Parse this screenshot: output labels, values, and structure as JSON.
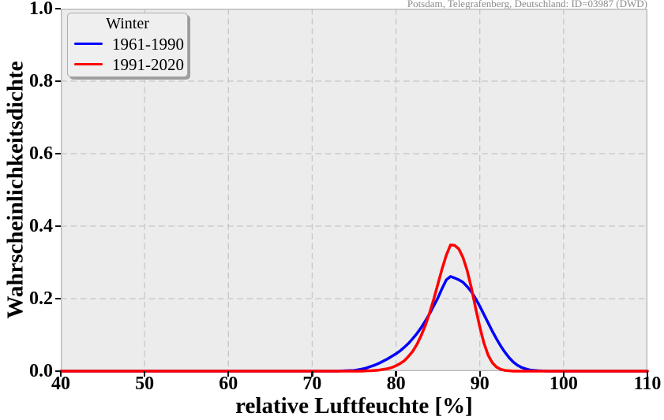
{
  "chart_data": {
    "type": "line",
    "annotation": "Potsdam, Telegrafenberg, Deutschland: ID=03987 (DWD)",
    "xlabel": "relative Luftfeuchte [%]",
    "ylabel": "Wahrscheinlichkeitsdichte",
    "xlim": [
      40,
      110
    ],
    "ylim": [
      0,
      1.0
    ],
    "xticks": {
      "values": [
        40,
        50,
        60,
        70,
        80,
        90,
        100,
        110
      ],
      "labels": [
        "40",
        "50",
        "60",
        "70",
        "80",
        "90",
        "100",
        "110"
      ]
    },
    "yticks": {
      "values": [
        0,
        0.2,
        0.4,
        0.6,
        0.8,
        1.0
      ],
      "labels": [
        "0.0",
        "0.2",
        "0.4",
        "0.6",
        "0.8",
        "1.0"
      ]
    },
    "grid": {
      "shown": true,
      "style": "dashed",
      "color": "#c6c6c6"
    },
    "plot_background": "#ececec",
    "legend": {
      "title": "Winter",
      "position": "upper left",
      "entries": [
        {
          "label": "1961-1990",
          "color": "#0000ff"
        },
        {
          "label": "1991-2020",
          "color": "#ff0000"
        }
      ]
    },
    "x": [
      40,
      50,
      60,
      70,
      73,
      74,
      75,
      75.5,
      76,
      76.5,
      77,
      77.5,
      78,
      78.5,
      79,
      79.5,
      80,
      80.5,
      81,
      81.5,
      82,
      82.5,
      83,
      83.5,
      84,
      84.5,
      85,
      85.5,
      86,
      86.5,
      87,
      87.5,
      88,
      88.5,
      89,
      89.5,
      90,
      90.5,
      91,
      91.5,
      92,
      92.5,
      93,
      93.5,
      94,
      94.5,
      95,
      95.5,
      96,
      96.5,
      97,
      98,
      100,
      105,
      110
    ],
    "series": [
      {
        "name": "1961-1990",
        "color": "#0000ff",
        "peak": {
          "x": 86.5,
          "y": 0.26
        },
        "values": [
          0,
          0,
          0,
          0,
          0,
          0.001,
          0.002,
          0.004,
          0.006,
          0.009,
          0.013,
          0.017,
          0.022,
          0.028,
          0.034,
          0.041,
          0.048,
          0.056,
          0.066,
          0.077,
          0.09,
          0.104,
          0.12,
          0.138,
          0.158,
          0.18,
          0.202,
          0.228,
          0.252,
          0.261,
          0.257,
          0.252,
          0.245,
          0.233,
          0.219,
          0.2,
          0.179,
          0.156,
          0.133,
          0.11,
          0.089,
          0.069,
          0.052,
          0.037,
          0.025,
          0.016,
          0.01,
          0.006,
          0.003,
          0.002,
          0.001,
          0,
          0,
          0,
          0
        ]
      },
      {
        "name": "1991-2020",
        "color": "#ff0000",
        "peak": {
          "x": 86.7,
          "y": 0.35
        },
        "values": [
          0,
          0,
          0,
          0,
          0,
          0,
          0,
          0,
          0,
          0.001,
          0.001,
          0.002,
          0.003,
          0.005,
          0.007,
          0.01,
          0.015,
          0.021,
          0.029,
          0.041,
          0.055,
          0.074,
          0.098,
          0.126,
          0.16,
          0.198,
          0.24,
          0.282,
          0.32,
          0.348,
          0.347,
          0.337,
          0.313,
          0.277,
          0.229,
          0.174,
          0.122,
          0.077,
          0.044,
          0.023,
          0.011,
          0.005,
          0.002,
          0.001,
          0,
          0,
          0,
          0,
          0,
          0,
          0,
          0,
          0,
          0,
          0
        ]
      }
    ]
  }
}
